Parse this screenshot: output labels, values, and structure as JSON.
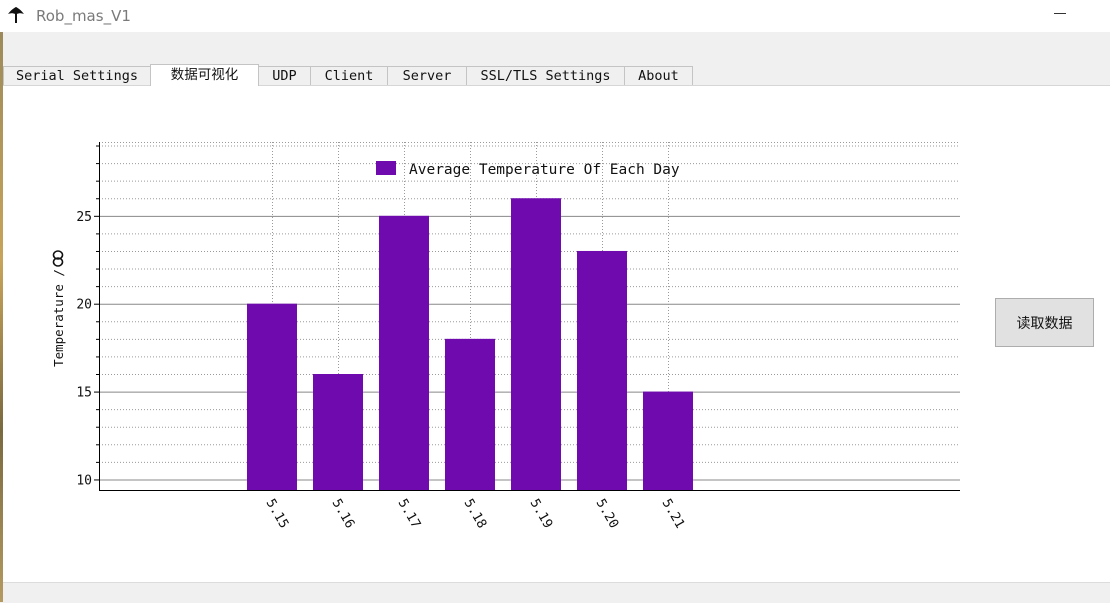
{
  "window": {
    "title": "Rob_mas_V1",
    "icon": "app-logo-icon",
    "minimize_icon": "minimize-icon"
  },
  "tabs": [
    {
      "label": "Serial Settings",
      "active": false
    },
    {
      "label": "数据可视化",
      "active": true
    },
    {
      "label": "UDP",
      "active": false
    },
    {
      "label": "Client",
      "active": false
    },
    {
      "label": "Server",
      "active": false
    },
    {
      "label": "SSL/TLS Settings",
      "active": false
    },
    {
      "label": "About",
      "active": false
    }
  ],
  "read_button": {
    "label": "读取数据"
  },
  "chart_data": {
    "type": "bar",
    "categories": [
      "5.15",
      "5.16",
      "5.17",
      "5.18",
      "5.19",
      "5.20",
      "5.21"
    ],
    "values": [
      20,
      16,
      25,
      18,
      26,
      23,
      15
    ],
    "series": [
      {
        "name": "Average Temperature Of Each Day",
        "values": [
          20,
          16,
          25,
          18,
          26,
          23,
          15
        ],
        "color": "#6e0aae"
      }
    ],
    "ylabel": "Temperature /",
    "xlabel": "",
    "ylim": [
      9.4,
      29.2
    ],
    "yticks": [
      10,
      15,
      20,
      25
    ],
    "ytick_labels": [
      "10",
      "15",
      "20",
      "25"
    ],
    "grid": true,
    "legend_position": "top-center",
    "colors": {
      "bar": "#6e0aae",
      "axis": "#000000",
      "major_grid": "#888888",
      "minor_grid": "#9a9a9a"
    }
  }
}
